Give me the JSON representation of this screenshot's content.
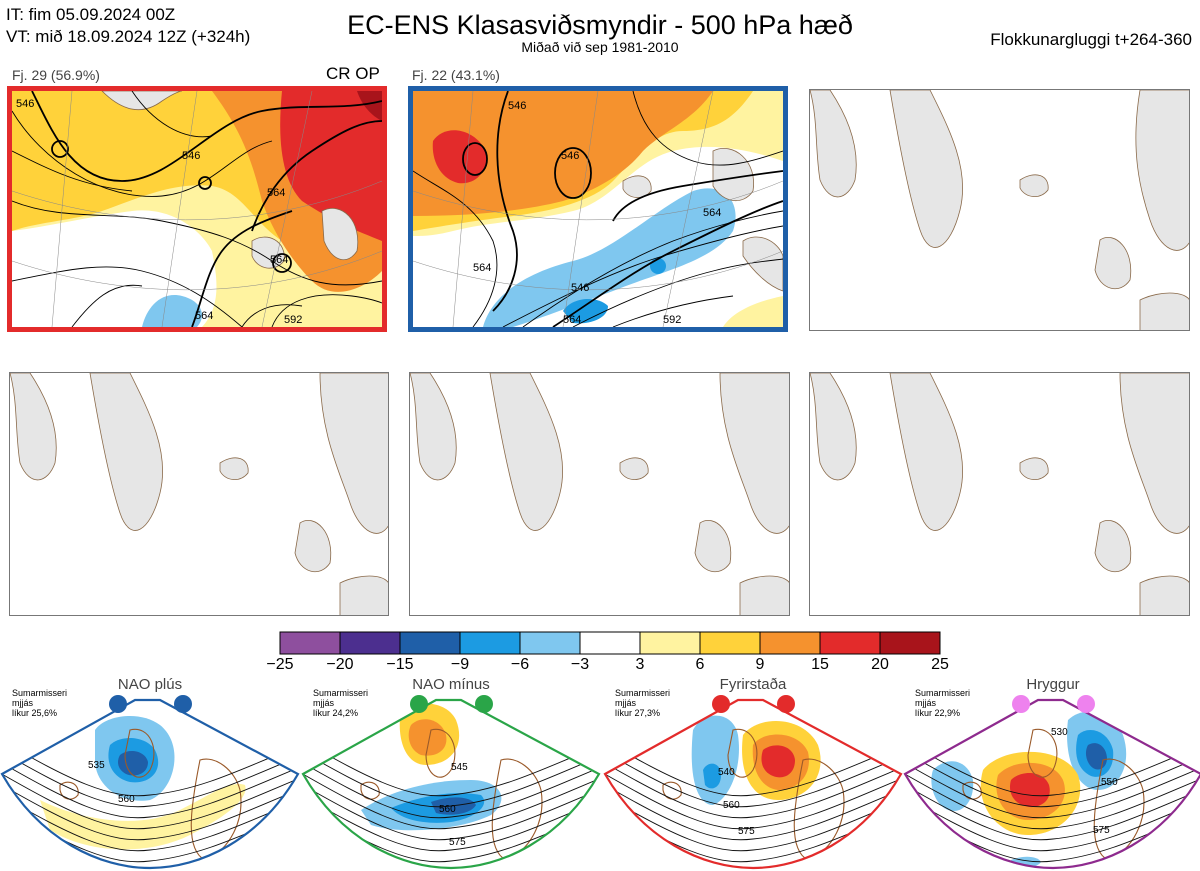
{
  "header": {
    "it_line": "IT: fim 05.09.2024 00Z",
    "vt_line": "VT: mið 18.09.2024 12Z  (+324h)",
    "title": "EC-ENS Klasasviðsmyndir - 500 hPa hæð",
    "subtitle": "Miðað við sep 1981-2010",
    "window": "Flokkunargluggi t+264-360"
  },
  "panels": [
    {
      "label": "Fj. 29 (56.9%)",
      "tag": "CR OP",
      "border": "#e32b2b",
      "contours": [
        "546",
        "546",
        "564",
        "564",
        "564",
        "592"
      ]
    },
    {
      "label": "Fj. 22 (43.1%)",
      "tag": "",
      "border": "#1f5fa8",
      "contours": [
        "546",
        "546",
        "546",
        "564",
        "564",
        "564",
        "592"
      ]
    }
  ],
  "colorbar": {
    "colors": [
      "#8e4f9e",
      "#4c2f8f",
      "#1f5fa8",
      "#1c9be2",
      "#7fc7ef",
      "#ffffff",
      "#fff3a0",
      "#ffd23a",
      "#f5922e",
      "#e32b2b",
      "#a8141b"
    ],
    "ticks": [
      "−25",
      "−20",
      "−15",
      "−9",
      "−6",
      "−3",
      "3",
      "6",
      "9",
      "15",
      "20",
      "25"
    ]
  },
  "regimes": [
    {
      "name": "NAO plús",
      "note": [
        "Sumarmisseri",
        "mjjás",
        "líkur 25,6%"
      ],
      "color": "#1f5fa8",
      "dot": "#1f5fa8",
      "labels": [
        "535",
        "560"
      ]
    },
    {
      "name": "NAO mínus",
      "note": [
        "Sumarmisseri",
        "mjjás",
        "líkur 24,2%"
      ],
      "color": "#2aa548",
      "dot": "#2aa548",
      "labels": [
        "545",
        "560",
        "575"
      ]
    },
    {
      "name": "Fyrirstaða",
      "note": [
        "Sumarmisseri",
        "mjjás",
        "líkur 27,3%"
      ],
      "color": "#e32b2b",
      "dot": "#e32b2b",
      "labels": [
        "540",
        "560",
        "575"
      ]
    },
    {
      "name": "Hryggur",
      "note": [
        "Sumarmisseri",
        "mjjás",
        "líkur 22,9%"
      ],
      "color": "#8e2a8e",
      "dot": "#ee82ee",
      "labels": [
        "530",
        "550",
        "575"
      ]
    }
  ]
}
